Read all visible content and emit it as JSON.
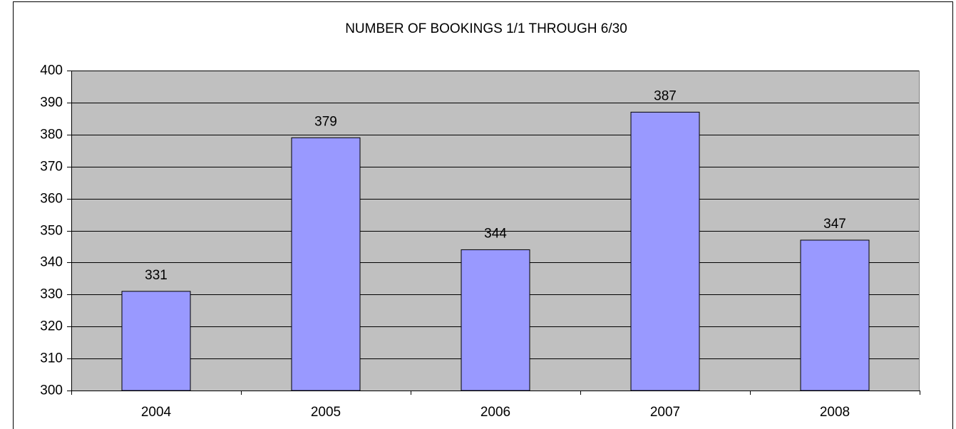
{
  "chart_data": {
    "type": "bar",
    "title": "NUMBER OF BOOKINGS 1/1 THROUGH 6/30",
    "categories": [
      "2004",
      "2005",
      "2006",
      "2007",
      "2008"
    ],
    "values": [
      331,
      379,
      344,
      387,
      347
    ],
    "color": "#9999ff",
    "plot_background": "#c0c0c0",
    "ylim": [
      300,
      400
    ],
    "yticks": [
      300,
      310,
      320,
      330,
      340,
      350,
      360,
      370,
      380,
      390,
      400
    ],
    "grid": true
  }
}
